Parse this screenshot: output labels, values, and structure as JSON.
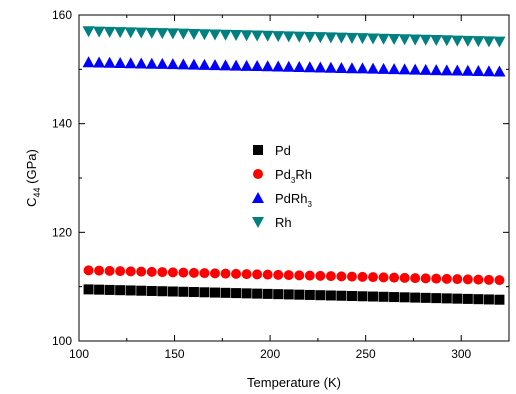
{
  "chart_data": {
    "type": "scatter",
    "title": "",
    "xlabel": "Temperature (K)",
    "ylabel": {
      "main": "C",
      "sub": "44",
      "tail": " (GPa)"
    },
    "xlim": [
      100,
      325
    ],
    "ylim": [
      100,
      160
    ],
    "x_ticks": [
      100,
      150,
      200,
      250,
      300
    ],
    "y_ticks": [
      100,
      120,
      140,
      160
    ],
    "x_tick_labels": [
      "100",
      "150",
      "200",
      "250",
      "300"
    ],
    "y_tick_labels": [
      "100",
      "120",
      "140",
      "160"
    ],
    "grid": false,
    "legend_position": "center",
    "x_start": 105,
    "x_end": 320,
    "points_per_series": 40,
    "series": [
      {
        "name": "Pd",
        "label_parts": [
          {
            "t": "Pd",
            "sub": false
          }
        ],
        "marker": "square",
        "color": "#000000",
        "y_start": 109.5,
        "y_end": 107.6
      },
      {
        "name": "Pd3Rh",
        "label_parts": [
          {
            "t": "Pd",
            "sub": false
          },
          {
            "t": "3",
            "sub": true
          },
          {
            "t": "Rh",
            "sub": false
          }
        ],
        "marker": "circle",
        "color": "#ff0000",
        "y_start": 113.0,
        "y_end": 111.2
      },
      {
        "name": "PdRh3",
        "label_parts": [
          {
            "t": "PdRh",
            "sub": false
          },
          {
            "t": "3",
            "sub": true
          }
        ],
        "marker": "triangle-up",
        "color": "#0000ff",
        "y_start": 151.3,
        "y_end": 149.6
      },
      {
        "name": "Rh",
        "label_parts": [
          {
            "t": "Rh",
            "sub": false
          }
        ],
        "marker": "triangle-down",
        "color": "#008080",
        "y_start": 157.0,
        "y_end": 155.1
      }
    ]
  }
}
